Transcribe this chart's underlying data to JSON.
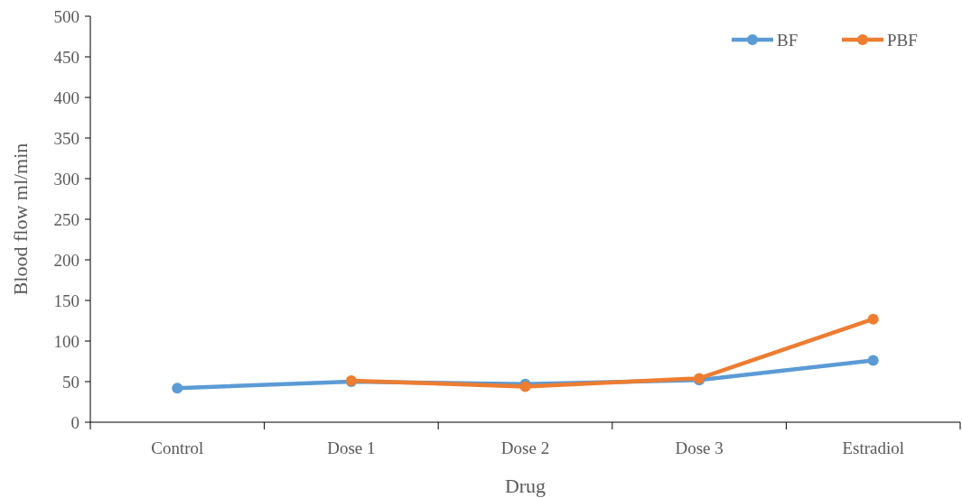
{
  "chart_data": {
    "type": "line",
    "xlabel": "Drug",
    "ylabel": "Blood flow ml/min",
    "categories": [
      "Control",
      "Dose 1",
      "Dose 2",
      "Dose 3",
      "Estradiol"
    ],
    "series": [
      {
        "name": "BF",
        "color": "#5b9bd5",
        "values": [
          42,
          50,
          47,
          52,
          76
        ]
      },
      {
        "name": "PBF",
        "color": "#ed7d31",
        "values": [
          null,
          51,
          44,
          54,
          127
        ]
      }
    ],
    "ylim": [
      0,
      500
    ],
    "yticks": [
      0,
      50,
      100,
      150,
      200,
      250,
      300,
      350,
      400,
      450,
      500
    ],
    "grid": false,
    "legend": "top right",
    "marker": "circle",
    "line_style": "solid"
  }
}
